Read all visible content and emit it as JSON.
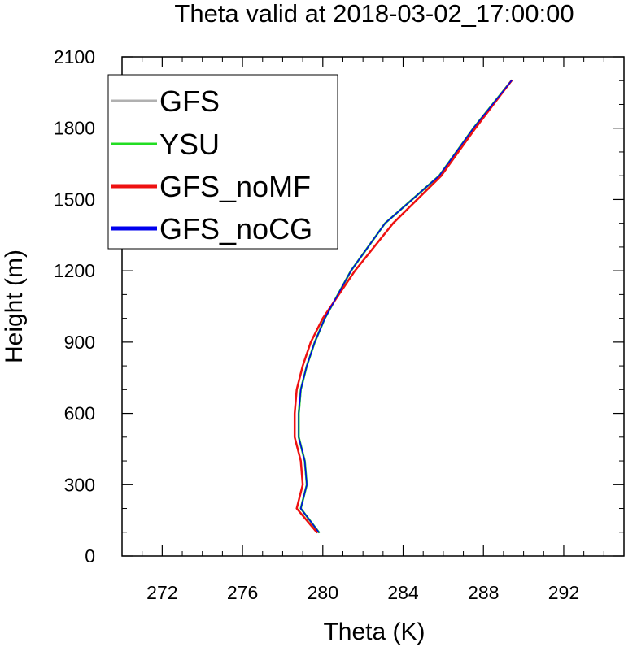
{
  "chart_data": {
    "type": "line",
    "title": "Theta valid at 2018-03-02_17:00:00",
    "xlabel": "Theta (K)",
    "ylabel": "Height (m)",
    "xlim": [
      270,
      295
    ],
    "ylim": [
      0,
      2100
    ],
    "x_ticks": [
      272,
      276,
      280,
      284,
      288,
      292
    ],
    "y_ticks": [
      0,
      300,
      600,
      900,
      1200,
      1500,
      1800,
      2100
    ],
    "grid": false,
    "legend_position": "top-left",
    "series": [
      {
        "name": "GFS",
        "color": "#b0b0b0",
        "points": [
          [
            279.8,
            100
          ],
          [
            278.9,
            200
          ],
          [
            279.2,
            300
          ],
          [
            279.1,
            400
          ],
          [
            278.8,
            500
          ],
          [
            278.8,
            600
          ],
          [
            278.9,
            700
          ],
          [
            279.2,
            800
          ],
          [
            279.6,
            900
          ],
          [
            280.1,
            1000
          ],
          [
            281.4,
            1200
          ],
          [
            283.1,
            1400
          ],
          [
            285.8,
            1600
          ],
          [
            287.5,
            1800
          ],
          [
            289.4,
            2000
          ]
        ]
      },
      {
        "name": "YSU",
        "color": "#22dd22",
        "points": [
          [
            279.8,
            100
          ],
          [
            278.9,
            200
          ],
          [
            279.2,
            300
          ],
          [
            279.1,
            400
          ],
          [
            278.8,
            500
          ],
          [
            278.8,
            600
          ],
          [
            278.9,
            700
          ],
          [
            279.2,
            800
          ],
          [
            279.6,
            900
          ],
          [
            280.1,
            1000
          ],
          [
            281.4,
            1200
          ],
          [
            283.1,
            1400
          ],
          [
            285.8,
            1600
          ],
          [
            287.5,
            1800
          ],
          [
            289.4,
            2000
          ]
        ]
      },
      {
        "name": "GFS_noMF",
        "color": "#ee1111",
        "points": [
          [
            279.7,
            100
          ],
          [
            278.7,
            200
          ],
          [
            279.0,
            300
          ],
          [
            278.9,
            400
          ],
          [
            278.6,
            500
          ],
          [
            278.6,
            600
          ],
          [
            278.7,
            700
          ],
          [
            279.0,
            800
          ],
          [
            279.4,
            900
          ],
          [
            280.0,
            1000
          ],
          [
            281.6,
            1200
          ],
          [
            283.5,
            1400
          ],
          [
            285.9,
            1600
          ],
          [
            287.6,
            1800
          ],
          [
            289.4,
            2000
          ]
        ]
      },
      {
        "name": "GFS_noCG",
        "color": "#0000ee",
        "points": [
          [
            279.8,
            100
          ],
          [
            278.9,
            200
          ],
          [
            279.2,
            300
          ],
          [
            279.1,
            400
          ],
          [
            278.8,
            500
          ],
          [
            278.8,
            600
          ],
          [
            278.9,
            700
          ],
          [
            279.2,
            800
          ],
          [
            279.6,
            900
          ],
          [
            280.1,
            1000
          ],
          [
            281.4,
            1200
          ],
          [
            283.1,
            1400
          ],
          [
            285.8,
            1600
          ],
          [
            287.5,
            1800
          ],
          [
            289.4,
            2000
          ]
        ]
      }
    ]
  }
}
